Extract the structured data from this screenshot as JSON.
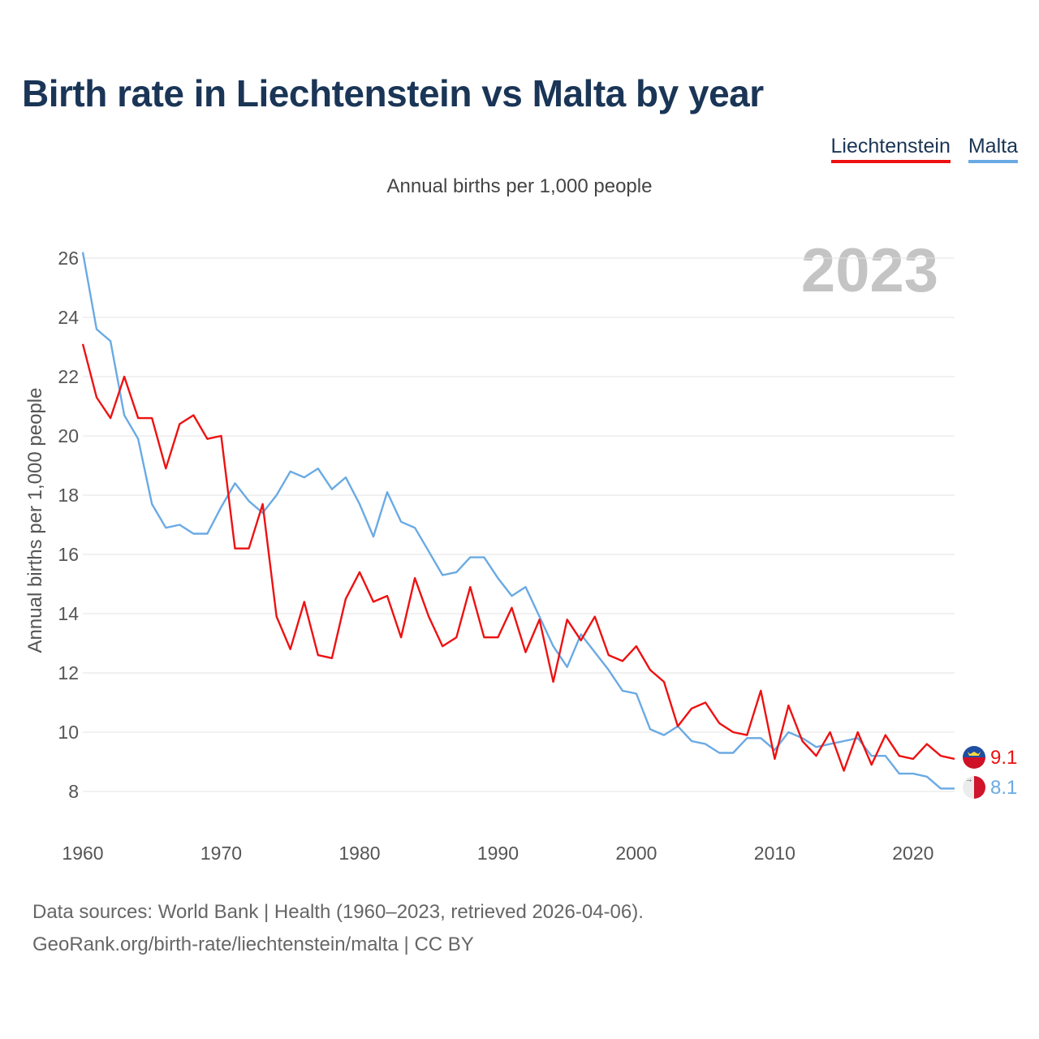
{
  "title": "Birth rate in Liechtenstein vs Malta by year",
  "legend": [
    {
      "name": "Liechtenstein",
      "color": "#ee1111"
    },
    {
      "name": "Malta",
      "color": "#6aaae4"
    }
  ],
  "subtitle": "Annual births per 1,000 people",
  "year_label": "2023",
  "source": {
    "line1": "Data sources: World Bank | Health (1960–2023, retrieved 2026-04-06).",
    "line2": "GeoRank.org/birth-rate/liechtenstein/malta | CC BY"
  },
  "chart_data": {
    "type": "line",
    "title": "Birth rate in Liechtenstein vs Malta by year",
    "xlabel": "",
    "ylabel": "Annual births per 1,000 people",
    "xlim": [
      1960,
      2023
    ],
    "ylim": [
      7,
      26.5
    ],
    "xticks": [
      1960,
      1970,
      1980,
      1990,
      2000,
      2010,
      2020
    ],
    "yticks": [
      8,
      10,
      12,
      14,
      16,
      18,
      20,
      22,
      24,
      26
    ],
    "grid": true,
    "legend_position": "top-right",
    "x": [
      1960,
      1961,
      1962,
      1963,
      1964,
      1965,
      1966,
      1967,
      1968,
      1969,
      1970,
      1971,
      1972,
      1973,
      1974,
      1975,
      1976,
      1977,
      1978,
      1979,
      1980,
      1981,
      1982,
      1983,
      1984,
      1985,
      1986,
      1987,
      1988,
      1989,
      1990,
      1991,
      1992,
      1993,
      1994,
      1995,
      1996,
      1997,
      1998,
      1999,
      2000,
      2001,
      2002,
      2003,
      2004,
      2005,
      2006,
      2007,
      2008,
      2009,
      2010,
      2011,
      2012,
      2013,
      2014,
      2015,
      2016,
      2017,
      2018,
      2019,
      2020,
      2021,
      2022,
      2023
    ],
    "series": [
      {
        "name": "Liechtenstein",
        "color": "#ee1111",
        "end_label": "9.1",
        "values": [
          23.1,
          21.3,
          20.6,
          22.0,
          20.6,
          20.6,
          18.9,
          20.4,
          20.7,
          19.9,
          20.0,
          16.2,
          16.2,
          17.7,
          13.9,
          12.8,
          14.4,
          12.6,
          12.5,
          14.5,
          15.4,
          14.4,
          14.6,
          13.2,
          15.2,
          13.9,
          12.9,
          13.2,
          14.9,
          13.2,
          13.2,
          14.2,
          12.7,
          13.8,
          11.7,
          13.8,
          13.1,
          13.9,
          12.6,
          12.4,
          12.9,
          12.1,
          11.7,
          10.2,
          10.8,
          11.0,
          10.3,
          10.0,
          9.9,
          11.4,
          9.1,
          10.9,
          9.7,
          9.2,
          10.0,
          8.7,
          10.0,
          8.9,
          9.9,
          9.2,
          9.1,
          9.6,
          9.2,
          9.1
        ]
      },
      {
        "name": "Malta",
        "color": "#6aaae4",
        "end_label": "8.1",
        "values": [
          26.2,
          23.6,
          23.2,
          20.7,
          19.9,
          17.7,
          16.9,
          17.0,
          16.7,
          16.7,
          17.6,
          18.4,
          17.8,
          17.4,
          18.0,
          18.8,
          18.6,
          18.9,
          18.2,
          18.6,
          17.7,
          16.6,
          18.1,
          17.1,
          16.9,
          16.1,
          15.3,
          15.4,
          15.9,
          15.9,
          15.2,
          14.6,
          14.9,
          13.9,
          12.9,
          12.2,
          13.3,
          12.7,
          12.1,
          11.4,
          11.3,
          10.1,
          9.9,
          10.2,
          9.7,
          9.6,
          9.3,
          9.3,
          9.8,
          9.8,
          9.4,
          10.0,
          9.8,
          9.5,
          9.6,
          9.7,
          9.8,
          9.2,
          9.2,
          8.6,
          8.6,
          8.5,
          8.1,
          8.1
        ]
      }
    ]
  }
}
